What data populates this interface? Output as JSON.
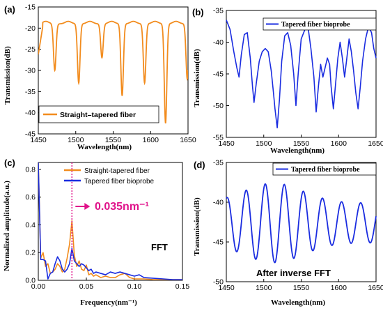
{
  "colors": {
    "orange": "#f28c1e",
    "blue": "#1a2ce0",
    "magenta": "#e0128a"
  },
  "chart_data": [
    {
      "id": "a",
      "panel_label": "(a)",
      "type": "line",
      "xlabel": "Wavelength(nm)",
      "ylabel": "Transmission(dB)",
      "xlim": [
        1450,
        1650
      ],
      "ylim": [
        -45,
        -15
      ],
      "xticks": [
        1450,
        1500,
        1550,
        1600,
        1650
      ],
      "yticks": [
        -45,
        -40,
        -35,
        -30,
        -25,
        -20,
        -15
      ],
      "legend": {
        "position": "bottom-left",
        "style": "box"
      },
      "series": [
        {
          "name": "Straight–tapered fiber",
          "color": "#f28c1e",
          "dips": [
            [
              1472,
              -30
            ],
            [
              1504,
              -33
            ],
            [
              1535,
              -27
            ],
            [
              1562,
              -36
            ],
            [
              1592,
              -33
            ],
            [
              1620,
              -42.5
            ],
            [
              1649,
              -32
            ]
          ],
          "peaks": [
            1460,
            1490,
            1519,
            1548,
            1577,
            1606,
            1634
          ],
          "baseline": -19
        }
      ]
    },
    {
      "id": "b",
      "panel_label": "(b)",
      "type": "line",
      "xlabel": "Wavelength(nm)",
      "ylabel": "Transmission(dB)",
      "xlim": [
        1450,
        1650
      ],
      "ylim": [
        -55,
        -35
      ],
      "xticks": [
        1450,
        1500,
        1550,
        1600,
        1650
      ],
      "yticks": [
        -55,
        -50,
        -45,
        -40,
        -35
      ],
      "legend": {
        "position": "top-right",
        "style": "box"
      },
      "series": [
        {
          "name": "Tapered fiber bioprobe",
          "color": "#1a2ce0",
          "points": [
            [
              1450,
              -36.5
            ],
            [
              1455,
              -38.0
            ],
            [
              1460,
              -41.5
            ],
            [
              1464,
              -44.0
            ],
            [
              1467,
              -45.5
            ],
            [
              1470,
              -42.0
            ],
            [
              1474,
              -38.8
            ],
            [
              1478,
              -38.5
            ],
            [
              1482,
              -42.5
            ],
            [
              1485,
              -47.0
            ],
            [
              1487,
              -49.5
            ],
            [
              1490,
              -46.5
            ],
            [
              1494,
              -43.0
            ],
            [
              1498,
              -41.5
            ],
            [
              1502,
              -41.0
            ],
            [
              1506,
              -41.5
            ],
            [
              1510,
              -44.5
            ],
            [
              1513,
              -48.0
            ],
            [
              1515,
              -50.5
            ],
            [
              1518,
              -53.5
            ],
            [
              1521,
              -49.0
            ],
            [
              1524,
              -43.0
            ],
            [
              1528,
              -39.0
            ],
            [
              1532,
              -38.5
            ],
            [
              1536,
              -40.5
            ],
            [
              1540,
              -45.0
            ],
            [
              1543,
              -50.0
            ],
            [
              1546,
              -45.0
            ],
            [
              1550,
              -39.5
            ],
            [
              1555,
              -38.0
            ],
            [
              1559,
              -37.5
            ],
            [
              1563,
              -41.0
            ],
            [
              1567,
              -45.5
            ],
            [
              1570,
              -51.0
            ],
            [
              1573,
              -47.0
            ],
            [
              1576,
              -43.5
            ],
            [
              1579,
              -45.5
            ],
            [
              1582,
              -44.0
            ],
            [
              1585,
              -42.5
            ],
            [
              1588,
              -43.5
            ],
            [
              1590,
              -47.0
            ],
            [
              1593,
              -50.5
            ],
            [
              1596,
              -46.5
            ],
            [
              1599,
              -42.5
            ],
            [
              1602,
              -40.0
            ],
            [
              1605,
              -42.5
            ],
            [
              1608,
              -45.5
            ],
            [
              1611,
              -42.5
            ],
            [
              1614,
              -39.5
            ],
            [
              1617,
              -41.5
            ],
            [
              1620,
              -44.5
            ],
            [
              1623,
              -48.0
            ],
            [
              1626,
              -50.5
            ],
            [
              1629,
              -47.0
            ],
            [
              1632,
              -43.0
            ],
            [
              1636,
              -39.5
            ],
            [
              1640,
              -37.5
            ],
            [
              1644,
              -38.5
            ],
            [
              1647,
              -41.0
            ],
            [
              1650,
              -42.5
            ]
          ]
        }
      ]
    },
    {
      "id": "c",
      "panel_label": "(c)",
      "type": "line",
      "xlabel": "Frequency(nm⁻¹)",
      "ylabel": "Normalized amplitude(a.u.)",
      "xlim": [
        0,
        0.15
      ],
      "ylim": [
        0,
        0.85
      ],
      "xticks": [
        0.0,
        0.05,
        0.1,
        0.15
      ],
      "xtick_labels": [
        "0.00",
        "0.05",
        "0.10",
        "0.15"
      ],
      "yticks": [
        0,
        0.2,
        0.4,
        0.6,
        0.8
      ],
      "ytick_labels": [
        "0.0",
        "0.2",
        "0.4",
        "0.6",
        "0.8"
      ],
      "legend": {
        "position": "top-right",
        "style": "plain"
      },
      "annotations": {
        "marker_x": 0.035,
        "marker_label": "0.035nm⁻¹",
        "fft_label": "FFT"
      },
      "series": [
        {
          "name": "Straight-tapered fiber",
          "color": "#f28c1e",
          "points": [
            [
              0.0,
              0.85
            ],
            [
              0.0025,
              0.16
            ],
            [
              0.005,
              0.2
            ],
            [
              0.0075,
              0.1
            ],
            [
              0.01,
              0.12
            ],
            [
              0.0125,
              0.05
            ],
            [
              0.015,
              0.06
            ],
            [
              0.0175,
              0.08
            ],
            [
              0.02,
              0.12
            ],
            [
              0.0225,
              0.1
            ],
            [
              0.025,
              0.06
            ],
            [
              0.0275,
              0.08
            ],
            [
              0.03,
              0.16
            ],
            [
              0.0325,
              0.26
            ],
            [
              0.035,
              0.43
            ],
            [
              0.0375,
              0.18
            ],
            [
              0.04,
              0.1
            ],
            [
              0.0425,
              0.14
            ],
            [
              0.045,
              0.08
            ],
            [
              0.0475,
              0.07
            ],
            [
              0.05,
              0.11
            ],
            [
              0.0525,
              0.04
            ],
            [
              0.055,
              0.05
            ],
            [
              0.0575,
              0.03
            ],
            [
              0.06,
              0.04
            ],
            [
              0.065,
              0.02
            ],
            [
              0.07,
              0.03
            ],
            [
              0.075,
              0.02
            ],
            [
              0.08,
              0.02
            ],
            [
              0.085,
              0.04
            ],
            [
              0.09,
              0.05
            ],
            [
              0.095,
              0.02
            ],
            [
              0.1,
              0.01
            ],
            [
              0.11,
              0.01
            ],
            [
              0.12,
              0.005
            ],
            [
              0.13,
              0.005
            ],
            [
              0.14,
              0.005
            ],
            [
              0.15,
              0.005
            ]
          ]
        },
        {
          "name": "Tapered fiber bioprobe",
          "color": "#1a2ce0",
          "points": [
            [
              0.0,
              0.85
            ],
            [
              0.0025,
              0.15
            ],
            [
              0.005,
              0.15
            ],
            [
              0.0075,
              0.14
            ],
            [
              0.01,
              0.01
            ],
            [
              0.0125,
              0.05
            ],
            [
              0.015,
              0.06
            ],
            [
              0.0175,
              0.12
            ],
            [
              0.02,
              0.17
            ],
            [
              0.0225,
              0.14
            ],
            [
              0.025,
              0.08
            ],
            [
              0.0275,
              0.06
            ],
            [
              0.03,
              0.08
            ],
            [
              0.0325,
              0.12
            ],
            [
              0.035,
              0.23
            ],
            [
              0.0375,
              0.14
            ],
            [
              0.04,
              0.12
            ],
            [
              0.0425,
              0.1
            ],
            [
              0.045,
              0.12
            ],
            [
              0.0475,
              0.11
            ],
            [
              0.05,
              0.09
            ],
            [
              0.0525,
              0.07
            ],
            [
              0.055,
              0.08
            ],
            [
              0.0575,
              0.05
            ],
            [
              0.06,
              0.06
            ],
            [
              0.065,
              0.05
            ],
            [
              0.07,
              0.04
            ],
            [
              0.075,
              0.06
            ],
            [
              0.08,
              0.05
            ],
            [
              0.085,
              0.06
            ],
            [
              0.09,
              0.05
            ],
            [
              0.095,
              0.04
            ],
            [
              0.1,
              0.03
            ],
            [
              0.105,
              0.04
            ],
            [
              0.11,
              0.02
            ],
            [
              0.12,
              0.015
            ],
            [
              0.13,
              0.01
            ],
            [
              0.14,
              0.005
            ],
            [
              0.15,
              0.005
            ]
          ]
        }
      ]
    },
    {
      "id": "d",
      "panel_label": "(d)",
      "type": "line",
      "xlabel": "Wavelength(nm)",
      "ylabel": "Transmission(dB)",
      "xlim": [
        1450,
        1650
      ],
      "ylim": [
        -50,
        -35
      ],
      "xticks": [
        1450,
        1500,
        1550,
        1600,
        1650
      ],
      "yticks": [
        -50,
        -45,
        -40,
        -35
      ],
      "legend": {
        "position": "top-right",
        "style": "box"
      },
      "annotations": {
        "note": "After inverse FFT"
      },
      "series": [
        {
          "name": "Tapered fiber bioprobe",
          "color": "#1a2ce0",
          "osc": {
            "period": 25.5,
            "mid": -42.6,
            "amp_max": 5.0,
            "amp_min": 2.5,
            "center": 1513,
            "phase_peak": 1502
          }
        }
      ]
    }
  ]
}
